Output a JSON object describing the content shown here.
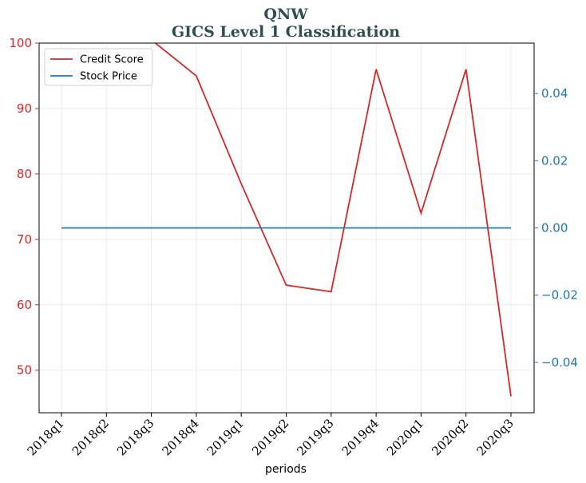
{
  "chart_data": {
    "type": "line",
    "title": "QNW",
    "subtitle": "GICS Level 1 Classification",
    "xlabel": "periods",
    "categories": [
      "2018q1",
      "2018q2",
      "2018q3",
      "2018q4",
      "2019q1",
      "2019q2",
      "2019q3",
      "2019q4",
      "2020q1",
      "2020q2",
      "2020q3"
    ],
    "left_axis": {
      "ylim": [
        43.5,
        100
      ],
      "ticks": [
        50,
        60,
        70,
        80,
        90,
        100
      ],
      "color": "#d62728"
    },
    "right_axis": {
      "ylim": [
        -0.055,
        0.055
      ],
      "ticks": [
        -0.04,
        -0.02,
        0.0,
        0.02,
        0.04
      ],
      "tick_labels": [
        "−0.04",
        "−0.02",
        "0.00",
        "0.02",
        "0.04"
      ],
      "color": "#1f77b4"
    },
    "grid": true,
    "legend_position": "top-left",
    "series": [
      {
        "name": "Credit Score",
        "axis": "left",
        "color": "#d62728",
        "values": [
          null,
          null,
          100.5,
          95,
          78.5,
          63,
          62,
          96,
          74,
          96,
          46
        ]
      },
      {
        "name": "Stock Price",
        "axis": "right",
        "color": "#1f77b4",
        "values": [
          0,
          0,
          0,
          0,
          0,
          0,
          0,
          0,
          0,
          0,
          0
        ]
      }
    ]
  }
}
